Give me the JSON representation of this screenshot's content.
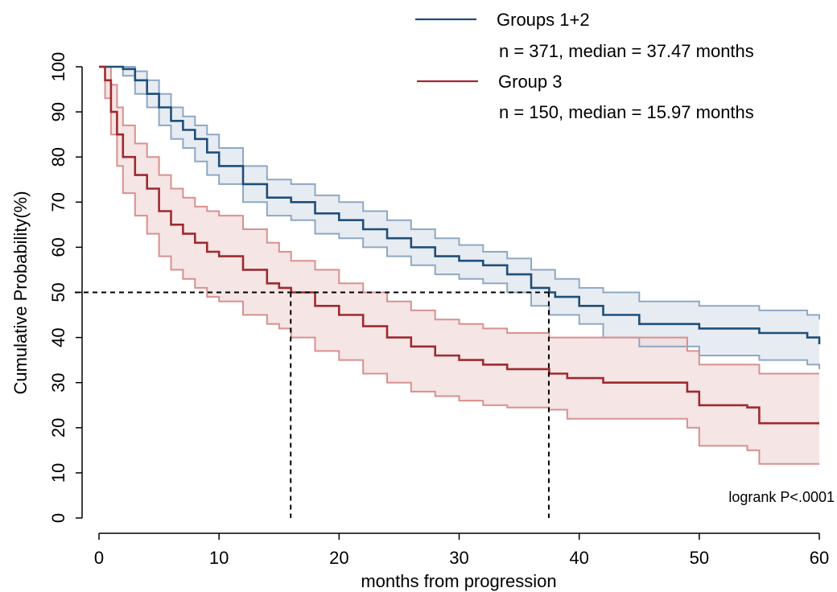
{
  "chart_data": {
    "type": "line",
    "subtype": "kaplan-meier survival curves with confidence bands",
    "xlabel": "months from progression",
    "ylabel": "Cumulative Probability(%)",
    "xlim": [
      0,
      60
    ],
    "ylim": [
      0,
      100
    ],
    "xticks": [
      0,
      10,
      20,
      30,
      40,
      50,
      60
    ],
    "yticks": [
      0,
      10,
      20,
      30,
      40,
      50,
      60,
      70,
      80,
      90,
      100
    ],
    "grid": false,
    "legend_position": "top-right",
    "annotation": "logrank P<.0001",
    "median_reference": {
      "y": 50,
      "x_values": [
        15.97,
        37.47
      ],
      "style": "dashed"
    },
    "series": [
      {
        "name": "Groups 1+2",
        "legend_detail": "n = 371, median = 37.47 months",
        "color": "#1f4e7a",
        "band_color": "#8fa7c4",
        "band_fill": "#dfe5ee",
        "x": [
          0,
          1,
          2,
          3,
          4,
          5,
          6,
          7,
          8,
          9,
          10,
          12,
          14,
          16,
          18,
          20,
          22,
          24,
          26,
          28,
          30,
          32,
          34,
          36,
          37.5,
          38,
          40,
          42,
          45,
          50,
          55,
          59,
          60
        ],
        "y": [
          100,
          100,
          99.5,
          97,
          94,
          91,
          88,
          86,
          84,
          81,
          78,
          74,
          71,
          70,
          67.5,
          66,
          64,
          62,
          60,
          58,
          57,
          56,
          54,
          51,
          50,
          49,
          47,
          45,
          43,
          42,
          41,
          40,
          38.5
        ],
        "lower": [
          100,
          100,
          98,
          94,
          91,
          87,
          84,
          82,
          79,
          76,
          74,
          70,
          67,
          66,
          63,
          62,
          60,
          58,
          56,
          54,
          53,
          52,
          50,
          47,
          45,
          45,
          43,
          40,
          38,
          36,
          35,
          34,
          33
        ],
        "upper": [
          100,
          100,
          100,
          99,
          97,
          94,
          91,
          89,
          87,
          85,
          82,
          78,
          75,
          74,
          71.5,
          70,
          68,
          66,
          64,
          62,
          60.5,
          59,
          57.5,
          55,
          55,
          53,
          51,
          50,
          48,
          47,
          46,
          45,
          44
        ]
      },
      {
        "name": "Group 3",
        "legend_detail": "n = 150, median = 15.97 months",
        "color": "#9e2a2f",
        "band_color": "#d9908f",
        "band_fill": "#f1dcdc",
        "x": [
          0,
          0.5,
          1,
          1.5,
          2,
          3,
          4,
          5,
          6,
          7,
          8,
          9,
          10,
          12,
          14,
          15,
          16,
          18,
          20,
          22,
          24,
          26,
          28,
          30,
          32,
          34,
          37.5,
          39,
          42,
          45,
          49,
          50,
          54,
          55,
          60
        ],
        "y": [
          100,
          97,
          90,
          85,
          80,
          76,
          73,
          68,
          65,
          63,
          61,
          59,
          58,
          55,
          52,
          51,
          50,
          47,
          45,
          42.5,
          40,
          38,
          36,
          35,
          34,
          33,
          32,
          31,
          30,
          30,
          28,
          25,
          24.5,
          21,
          21
        ],
        "lower": [
          100,
          93,
          85,
          78,
          72,
          67,
          63,
          58,
          55,
          53,
          51,
          49,
          48,
          45,
          43,
          42,
          40,
          37,
          35,
          32,
          30,
          28,
          27,
          26,
          25,
          24.5,
          24,
          22,
          22,
          22,
          20,
          16,
          15,
          12,
          12
        ],
        "upper": [
          100,
          100,
          96,
          91,
          87,
          83,
          80,
          76,
          73,
          71,
          69,
          68,
          67,
          64,
          61,
          59,
          57,
          55,
          52,
          50,
          48,
          46,
          44,
          43,
          42,
          41,
          40,
          40,
          40,
          40,
          37,
          34,
          34,
          32,
          32
        ]
      }
    ]
  }
}
